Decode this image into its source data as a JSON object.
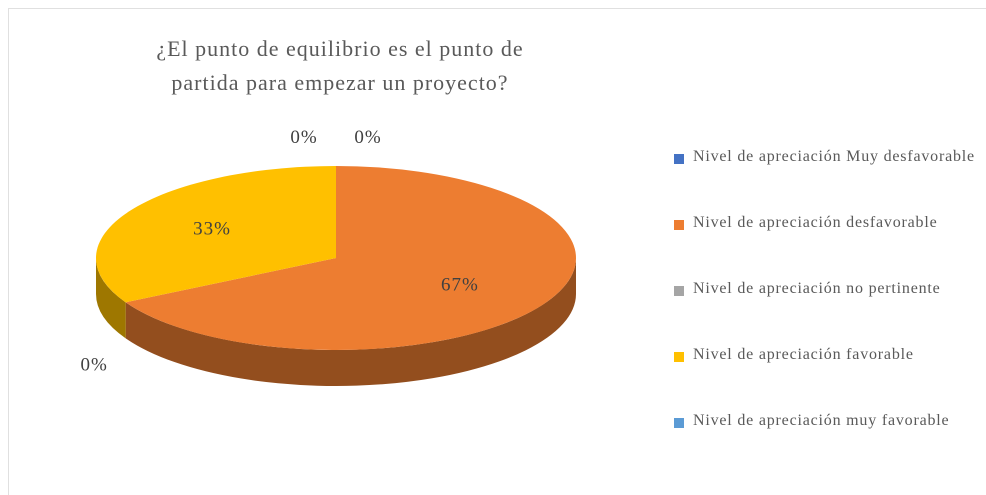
{
  "chart_data": {
    "type": "pie",
    "title": "¿El punto de equilibrio es el punto de partida para empezar un proyecto?",
    "categories": [
      "Nivel de apreciación Muy desfavorable",
      "Nivel de apreciación desfavorable",
      "Nivel de apreciación no pertinente",
      "Nivel de apreciación favorable",
      "Nivel de apreciación muy favorable"
    ],
    "values": [
      0,
      67,
      0,
      33,
      0
    ],
    "value_labels": [
      "0%",
      "67%",
      "0%",
      "33%",
      "0%"
    ],
    "colors": [
      "#4472c4",
      "#ed7d31",
      "#a5a5a5",
      "#ffc000",
      "#5b9bd5"
    ],
    "legend": "right"
  }
}
